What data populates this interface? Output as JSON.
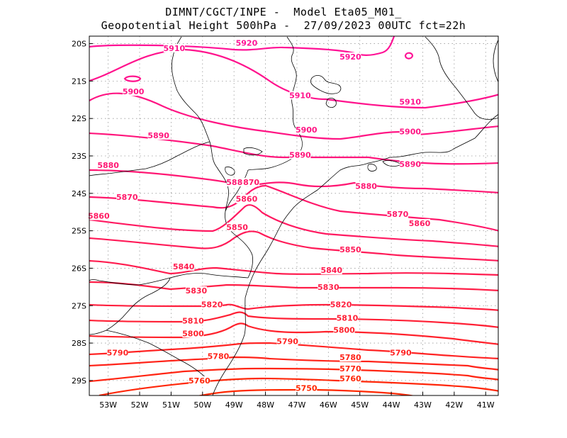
{
  "title": {
    "line1": "DIMNT/CGCT/INPE -  Model Eta05_M01_",
    "line2": "Geopotential Height 500hPa -  27/09/2023 00UTC fct=22h"
  },
  "map": {
    "lon_range": [
      -53.6,
      -40.6
    ],
    "lat_range": [
      -29.4,
      -19.8
    ],
    "x_tick_labels": [
      "53W",
      "52W",
      "51W",
      "50W",
      "49W",
      "48W",
      "47W",
      "46W",
      "45W",
      "44W",
      "43W",
      "42W",
      "41W"
    ],
    "y_tick_labels": [
      "20S",
      "21S",
      "22S",
      "23S",
      "24S",
      "25S",
      "26S",
      "27S",
      "28S",
      "29S"
    ],
    "grid": "dotted",
    "colors": {
      "high": "#ff1493",
      "low": "#ff2a00",
      "coast": "#000000"
    }
  },
  "contours": [
    {
      "level": 5920,
      "labels": [
        {
          "text": "5920",
          "lon": -48.6,
          "lat": -19.98
        },
        {
          "text": "5920",
          "lon": -45.3,
          "lat": -20.35
        }
      ]
    },
    {
      "level": 5910,
      "labels": [
        {
          "text": "5910",
          "lon": -50.9,
          "lat": -20.12
        },
        {
          "text": "5910",
          "lon": -46.9,
          "lat": -21.38
        },
        {
          "text": "5910",
          "lon": -43.4,
          "lat": -21.55
        }
      ]
    },
    {
      "level": 5900,
      "labels": [
        {
          "text": "5900",
          "lon": -52.2,
          "lat": -21.28
        },
        {
          "text": "5900",
          "lon": -46.7,
          "lat": -22.3
        },
        {
          "text": "5900",
          "lon": -43.4,
          "lat": -22.35
        }
      ]
    },
    {
      "level": 5890,
      "labels": [
        {
          "text": "5890",
          "lon": -51.4,
          "lat": -22.45
        },
        {
          "text": "5890",
          "lon": -46.9,
          "lat": -22.97
        },
        {
          "text": "5890",
          "lon": -43.4,
          "lat": -23.22
        }
      ]
    },
    {
      "level": 5880,
      "labels": [
        {
          "text": "5880",
          "lon": -53.0,
          "lat": -23.25
        },
        {
          "text": "5880",
          "lon": -48.9,
          "lat": -23.7
        },
        {
          "text": "5880",
          "lon": -44.8,
          "lat": -23.8
        }
      ]
    },
    {
      "level": 5870,
      "labels": [
        {
          "text": "5870",
          "lon": -52.4,
          "lat": -24.1
        },
        {
          "text": "870",
          "lon": -48.45,
          "lat": -23.7
        },
        {
          "text": "5870",
          "lon": -43.8,
          "lat": -24.55
        }
      ]
    },
    {
      "level": 5860,
      "labels": [
        {
          "text": "5860",
          "lon": -53.3,
          "lat": -24.6
        },
        {
          "text": "5860",
          "lon": -48.6,
          "lat": -24.15
        },
        {
          "text": "5860",
          "lon": -43.1,
          "lat": -24.8
        }
      ]
    },
    {
      "level": 5850,
      "labels": [
        {
          "text": "5850",
          "lon": -48.9,
          "lat": -24.9
        },
        {
          "text": "5850",
          "lon": -45.3,
          "lat": -25.5
        }
      ]
    },
    {
      "level": 5840,
      "labels": [
        {
          "text": "5840",
          "lon": -50.6,
          "lat": -25.95
        },
        {
          "text": "5840",
          "lon": -45.9,
          "lat": -26.05
        }
      ]
    },
    {
      "level": 5830,
      "labels": [
        {
          "text": "5830",
          "lon": -50.2,
          "lat": -26.6
        },
        {
          "text": "5830",
          "lon": -46.0,
          "lat": -26.5
        }
      ]
    },
    {
      "level": 5820,
      "labels": [
        {
          "text": "5820",
          "lon": -49.7,
          "lat": -26.97
        },
        {
          "text": "5820",
          "lon": -45.6,
          "lat": -26.97
        }
      ]
    },
    {
      "level": 5810,
      "labels": [
        {
          "text": "5810",
          "lon": -50.3,
          "lat": -27.4
        },
        {
          "text": "5810",
          "lon": -45.4,
          "lat": -27.33
        }
      ]
    },
    {
      "level": 5800,
      "labels": [
        {
          "text": "5800",
          "lon": -50.3,
          "lat": -27.74
        },
        {
          "text": "5800",
          "lon": -45.5,
          "lat": -27.65
        }
      ]
    },
    {
      "level": 5790,
      "labels": [
        {
          "text": "5790",
          "lon": -52.7,
          "lat": -28.25
        },
        {
          "text": "5790",
          "lon": -47.3,
          "lat": -27.95
        },
        {
          "text": "5790",
          "lon": -43.7,
          "lat": -28.25
        }
      ]
    },
    {
      "level": 5780,
      "labels": [
        {
          "text": "5780",
          "lon": -49.5,
          "lat": -28.35
        },
        {
          "text": "5780",
          "lon": -45.3,
          "lat": -28.38
        }
      ]
    },
    {
      "level": 5770,
      "labels": [
        {
          "text": "5770",
          "lon": -45.3,
          "lat": -28.68
        }
      ]
    },
    {
      "level": 5760,
      "labels": [
        {
          "text": "5760",
          "lon": -50.1,
          "lat": -29.0
        },
        {
          "text": "5760",
          "lon": -45.3,
          "lat": -28.95
        }
      ]
    },
    {
      "level": 5750,
      "labels": [
        {
          "text": "5750",
          "lon": -46.7,
          "lat": -29.2
        }
      ]
    }
  ]
}
